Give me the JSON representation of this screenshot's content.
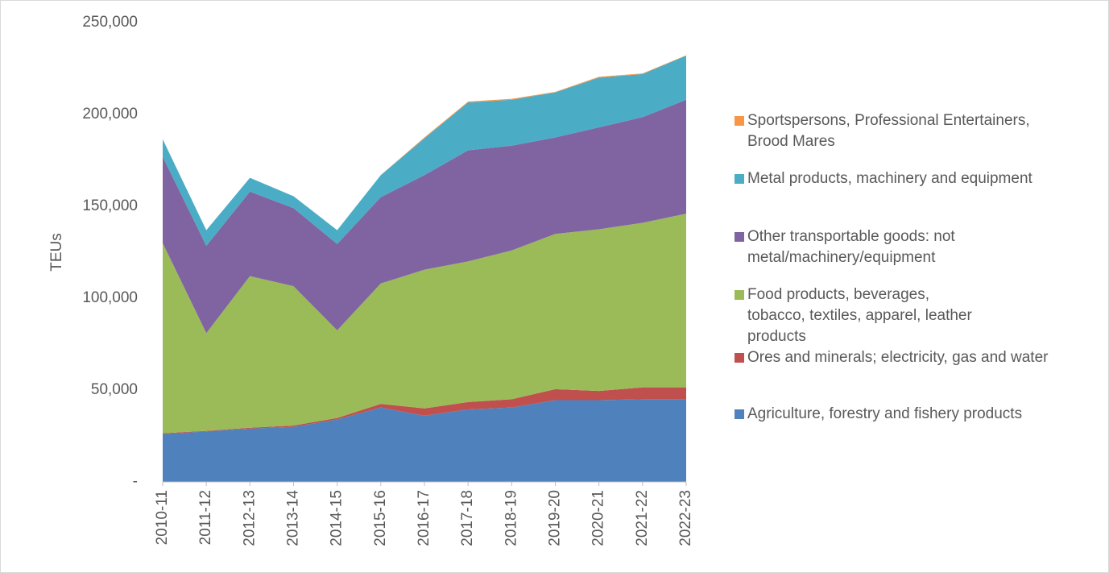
{
  "chart_data": {
    "type": "stacked_area",
    "y_label": "TEUs",
    "categories": [
      "2010-11",
      "2011-12",
      "2012-13",
      "2013-14",
      "2014-15",
      "2015-16",
      "2016-17",
      "2017-18",
      "2018-19",
      "2019-20",
      "2020-21",
      "2021-22",
      "2022-23"
    ],
    "series": [
      {
        "name": "Agriculture, forestry and fishery products",
        "color": "#4f81bd",
        "values": [
          26000,
          27500,
          29000,
          30000,
          34000,
          40500,
          36000,
          39500,
          40500,
          44500,
          44500,
          45000,
          45000
        ]
      },
      {
        "name": "Ores and minerals; electricity, gas and water",
        "color": "#c0504d",
        "values": [
          500,
          300,
          500,
          700,
          800,
          2000,
          4000,
          4000,
          4500,
          6000,
          5000,
          6500,
          6500
        ]
      },
      {
        "name": "Food products, beverages, tobacco, textiles, apparel, leather products",
        "color": "#9bbb59",
        "values": [
          103500,
          53200,
          82500,
          75800,
          47700,
          65500,
          75500,
          76500,
          81000,
          84500,
          88000,
          89500,
          94500
        ]
      },
      {
        "name": "Other transportable goods: not metal/machinery/equipment",
        "color": "#8064a2",
        "values": [
          47000,
          47500,
          46000,
          42500,
          47000,
          47000,
          51500,
          60500,
          57000,
          52500,
          55500,
          57500,
          62000
        ]
      },
      {
        "name": "Metal products, machinery and equipment",
        "color": "#4bacc6",
        "values": [
          9500,
          8500,
          7500,
          6500,
          7500,
          12000,
          20000,
          26000,
          25000,
          24500,
          27000,
          23500,
          24000
        ]
      },
      {
        "name": "Sportspersons, Professional Entertainers, Brood Mares",
        "color": "#f79646",
        "values": [
          0,
          0,
          0,
          0,
          0,
          0,
          500,
          500,
          500,
          300,
          500,
          300,
          200
        ]
      }
    ],
    "ylim": [
      0,
      250000
    ],
    "yticks": [
      {
        "value": 0,
        "label": "-"
      },
      {
        "value": 50000,
        "label": "50,000"
      },
      {
        "value": 100000,
        "label": "100,000"
      },
      {
        "value": 150000,
        "label": "150,000"
      },
      {
        "value": 200000,
        "label": "200,000"
      },
      {
        "value": 250000,
        "label": "250,000"
      }
    ],
    "grid": false,
    "legend": "right"
  }
}
